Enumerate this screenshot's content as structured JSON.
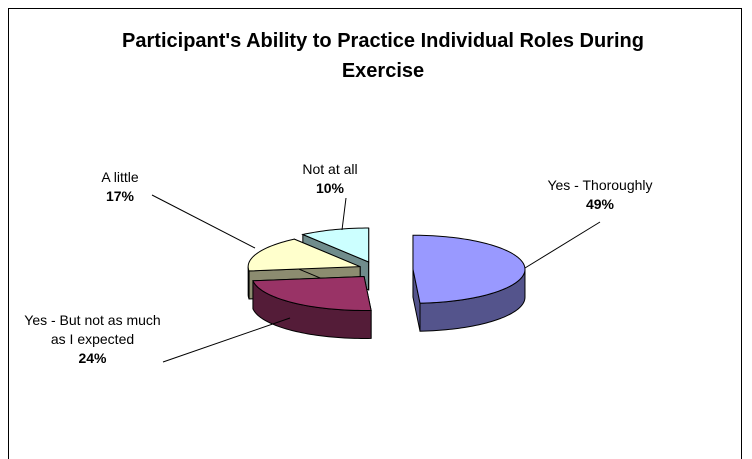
{
  "chart_data": {
    "type": "pie",
    "title": "Participant's Ability to Practice Individual Roles During Exercise",
    "categories": [
      "Yes - Thoroughly",
      "Yes - But not as much as I expected",
      "A little",
      "Not at all"
    ],
    "values": [
      49,
      24,
      17,
      10
    ],
    "value_labels": [
      "49%",
      "24%",
      "17%",
      "10%"
    ],
    "colors": [
      "#9999ff",
      "#993366",
      "#ffffcc",
      "#ccffff"
    ]
  }
}
